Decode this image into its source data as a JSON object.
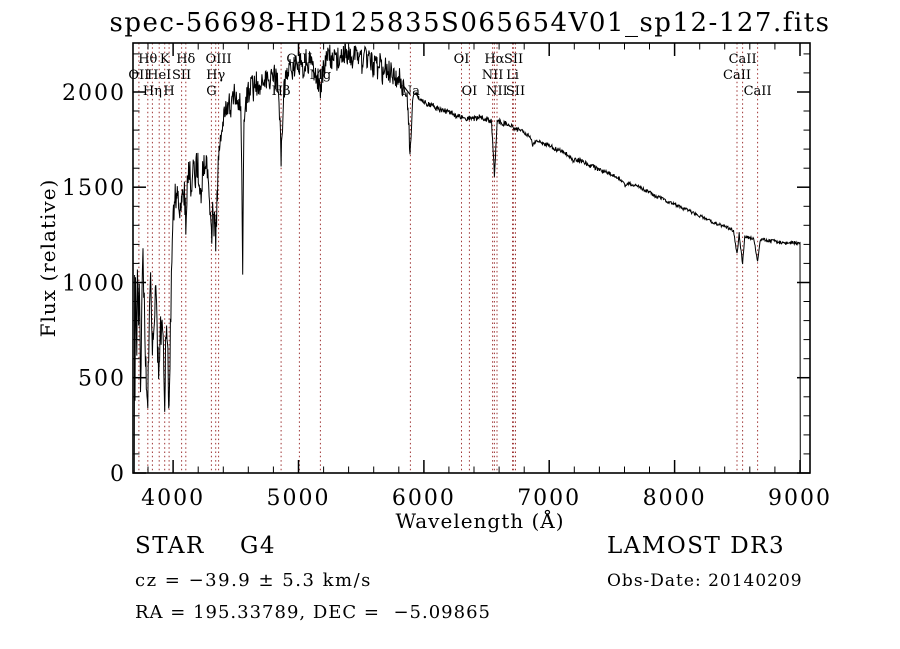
{
  "annotations": {
    "class_label": "STAR    G4",
    "cz": "cz = −39.9 ± 5.3 km/s",
    "radec": "RA = 195.33789, DEC =  −5.09865",
    "survey": "LAMOST DR3",
    "obs_date": "Obs-Date: 20140209"
  },
  "chart_data": {
    "type": "line",
    "title": "spec-56698-HD125835S065654V01_sp12-127.fits",
    "xlabel": "Wavelength (Å)",
    "ylabel": "Flux (relative)",
    "xlim": [
      3680,
      9080
    ],
    "ylim": [
      0,
      2257
    ],
    "x_ticks": [
      4000,
      5000,
      6000,
      7000,
      8000,
      9000
    ],
    "y_ticks": [
      0,
      500,
      1000,
      1500,
      2000
    ],
    "x_minor_step": 200,
    "y_minor_step": 100,
    "grid": false,
    "legend": "none",
    "line_color": "#000000",
    "marker_color": "#9e3434",
    "spectral_lines": [
      {
        "label": "OII",
        "wavelength": 3727,
        "row": 2
      },
      {
        "label": "Hθ",
        "wavelength": 3798,
        "row": 1
      },
      {
        "label": "Hη",
        "wavelength": 3835,
        "row": 3
      },
      {
        "label": "HeI",
        "wavelength": 3889,
        "row": 2
      },
      {
        "label": "K",
        "wavelength": 3933,
        "row": 1
      },
      {
        "label": "H",
        "wavelength": 3968,
        "row": 3
      },
      {
        "label": "SII",
        "wavelength": 4068,
        "row": 2
      },
      {
        "label": "Hδ",
        "wavelength": 4101,
        "row": 1
      },
      {
        "label": "G",
        "wavelength": 4305,
        "row": 3
      },
      {
        "label": "Hγ",
        "wavelength": 4340,
        "row": 2
      },
      {
        "label": "OIII",
        "wavelength": 4363,
        "row": 1
      },
      {
        "label": "Hβ",
        "wavelength": 4861,
        "row": 3
      },
      {
        "label": "OIII",
        "wavelength": 5007,
        "row": 1
      },
      {
        "label": "Mg",
        "wavelength": 5175,
        "row": 2
      },
      {
        "label": "Na",
        "wavelength": 5893,
        "row": 3
      },
      {
        "label": "OI",
        "wavelength": 6300,
        "row": 1
      },
      {
        "label": "OI",
        "wavelength": 6363,
        "row": 3
      },
      {
        "label": "NII",
        "wavelength": 6548,
        "row": 2
      },
      {
        "label": "Hα",
        "wavelength": 6563,
        "row": 1
      },
      {
        "label": "NII",
        "wavelength": 6583,
        "row": 3
      },
      {
        "label": "Li",
        "wavelength": 6707,
        "row": 2
      },
      {
        "label": "SII",
        "wavelength": 6716,
        "row": 1
      },
      {
        "label": "SII",
        "wavelength": 6731,
        "row": 3
      },
      {
        "label": "CaII",
        "wavelength": 8498,
        "row": 2
      },
      {
        "label": "CaII",
        "wavelength": 8542,
        "row": 1
      },
      {
        "label": "CaII",
        "wavelength": 8662,
        "row": 3
      }
    ],
    "noise_profile": [
      [
        3690,
        3990,
        120
      ],
      [
        3990,
        4380,
        85
      ],
      [
        4380,
        5900,
        65
      ],
      [
        5900,
        6700,
        15
      ],
      [
        6700,
        7600,
        12
      ],
      [
        7600,
        9010,
        9
      ]
    ],
    "series": [
      {
        "name": "flux",
        "points": [
          [
            3690,
            0
          ],
          [
            3693,
            950
          ],
          [
            3696,
            350
          ],
          [
            3700,
            1050
          ],
          [
            3705,
            800
          ],
          [
            3710,
            650
          ],
          [
            3715,
            1000
          ],
          [
            3720,
            1060
          ],
          [
            3725,
            850
          ],
          [
            3730,
            1000
          ],
          [
            3735,
            700
          ],
          [
            3740,
            480
          ],
          [
            3745,
            650
          ],
          [
            3750,
            850
          ],
          [
            3755,
            1050
          ],
          [
            3760,
            1120
          ],
          [
            3765,
            980
          ],
          [
            3770,
            900
          ],
          [
            3775,
            750
          ],
          [
            3780,
            600
          ],
          [
            3786,
            420
          ],
          [
            3792,
            320
          ],
          [
            3798,
            400
          ],
          [
            3805,
            650
          ],
          [
            3812,
            850
          ],
          [
            3820,
            950
          ],
          [
            3828,
            780
          ],
          [
            3835,
            600
          ],
          [
            3842,
            700
          ],
          [
            3850,
            880
          ],
          [
            3858,
            930
          ],
          [
            3865,
            850
          ],
          [
            3872,
            700
          ],
          [
            3880,
            600
          ],
          [
            3889,
            520
          ],
          [
            3896,
            650
          ],
          [
            3904,
            780
          ],
          [
            3912,
            850
          ],
          [
            3920,
            650
          ],
          [
            3926,
            480
          ],
          [
            3933,
            330
          ],
          [
            3940,
            600
          ],
          [
            3948,
            820
          ],
          [
            3955,
            700
          ],
          [
            3962,
            480
          ],
          [
            3968,
            340
          ],
          [
            3975,
            600
          ],
          [
            3982,
            900
          ],
          [
            3990,
            1150
          ],
          [
            4000,
            1320
          ],
          [
            4010,
            1420
          ],
          [
            4020,
            1480
          ],
          [
            4030,
            1450
          ],
          [
            4040,
            1420
          ],
          [
            4050,
            1350
          ],
          [
            4060,
            1420
          ],
          [
            4070,
            1480
          ],
          [
            4080,
            1500
          ],
          [
            4090,
            1450
          ],
          [
            4101,
            1320
          ],
          [
            4110,
            1480
          ],
          [
            4120,
            1550
          ],
          [
            4130,
            1580
          ],
          [
            4145,
            1520
          ],
          [
            4160,
            1600
          ],
          [
            4175,
            1560
          ],
          [
            4190,
            1620
          ],
          [
            4205,
            1580
          ],
          [
            4220,
            1500
          ],
          [
            4227,
            1450
          ],
          [
            4235,
            1580
          ],
          [
            4250,
            1650
          ],
          [
            4265,
            1600
          ],
          [
            4280,
            1550
          ],
          [
            4290,
            1480
          ],
          [
            4305,
            1230
          ],
          [
            4315,
            1350
          ],
          [
            4330,
            1300
          ],
          [
            4340,
            1200
          ],
          [
            4350,
            1450
          ],
          [
            4360,
            1600
          ],
          [
            4370,
            1700
          ],
          [
            4385,
            1780
          ],
          [
            4400,
            1850
          ],
          [
            4420,
            1900
          ],
          [
            4440,
            1950
          ],
          [
            4460,
            1920
          ],
          [
            4480,
            1990
          ],
          [
            4500,
            1960
          ],
          [
            4520,
            1900
          ],
          [
            4540,
            1960
          ],
          [
            4555,
            1080
          ],
          [
            4565,
            1850
          ],
          [
            4580,
            1950
          ],
          [
            4600,
            2000
          ],
          [
            4620,
            2050
          ],
          [
            4640,
            2000
          ],
          [
            4660,
            2060
          ],
          [
            4680,
            2010
          ],
          [
            4700,
            2060
          ],
          [
            4720,
            2100
          ],
          [
            4740,
            2060
          ],
          [
            4760,
            2100
          ],
          [
            4780,
            2060
          ],
          [
            4800,
            2110
          ],
          [
            4820,
            2070
          ],
          [
            4840,
            2020
          ],
          [
            4861,
            1660
          ],
          [
            4880,
            1980
          ],
          [
            4900,
            2060
          ],
          [
            4920,
            2110
          ],
          [
            4940,
            2150
          ],
          [
            4960,
            2110
          ],
          [
            4980,
            2150
          ],
          [
            5000,
            2120
          ],
          [
            5020,
            2160
          ],
          [
            5040,
            2120
          ],
          [
            5060,
            2160
          ],
          [
            5080,
            2130
          ],
          [
            5100,
            2170
          ],
          [
            5120,
            2130
          ],
          [
            5140,
            2100
          ],
          [
            5160,
            2060
          ],
          [
            5175,
            1990
          ],
          [
            5190,
            2080
          ],
          [
            5210,
            2140
          ],
          [
            5230,
            2170
          ],
          [
            5250,
            2190
          ],
          [
            5270,
            2150
          ],
          [
            5290,
            2200
          ],
          [
            5310,
            2170
          ],
          [
            5330,
            2210
          ],
          [
            5350,
            2180
          ],
          [
            5370,
            2210
          ],
          [
            5390,
            2170
          ],
          [
            5410,
            2200
          ],
          [
            5430,
            2160
          ],
          [
            5450,
            2190
          ],
          [
            5470,
            2150
          ],
          [
            5490,
            2180
          ],
          [
            5510,
            2150
          ],
          [
            5530,
            2180
          ],
          [
            5550,
            2140
          ],
          [
            5570,
            2170
          ],
          [
            5590,
            2130
          ],
          [
            5610,
            2150
          ],
          [
            5630,
            2110
          ],
          [
            5650,
            2140
          ],
          [
            5670,
            2100
          ],
          [
            5690,
            2130
          ],
          [
            5710,
            2090
          ],
          [
            5730,
            2110
          ],
          [
            5750,
            2070
          ],
          [
            5770,
            2090
          ],
          [
            5790,
            2050
          ],
          [
            5810,
            2070
          ],
          [
            5830,
            2030
          ],
          [
            5850,
            2010
          ],
          [
            5870,
            1950
          ],
          [
            5893,
            1660
          ],
          [
            5910,
            1950
          ],
          [
            5930,
            2000
          ],
          [
            5950,
            1980
          ],
          [
            5970,
            1960
          ],
          [
            6000,
            1950
          ],
          [
            6030,
            1940
          ],
          [
            6060,
            1930
          ],
          [
            6090,
            1920
          ],
          [
            6120,
            1910
          ],
          [
            6150,
            1900
          ],
          [
            6180,
            1900
          ],
          [
            6210,
            1890
          ],
          [
            6240,
            1880
          ],
          [
            6270,
            1875
          ],
          [
            6300,
            1870
          ],
          [
            6330,
            1865
          ],
          [
            6360,
            1860
          ],
          [
            6390,
            1860
          ],
          [
            6420,
            1865
          ],
          [
            6450,
            1870
          ],
          [
            6480,
            1860
          ],
          [
            6510,
            1855
          ],
          [
            6540,
            1845
          ],
          [
            6563,
            1560
          ],
          [
            6585,
            1840
          ],
          [
            6610,
            1845
          ],
          [
            6640,
            1835
          ],
          [
            6670,
            1830
          ],
          [
            6700,
            1820
          ],
          [
            6730,
            1805
          ],
          [
            6760,
            1800
          ],
          [
            6790,
            1790
          ],
          [
            6820,
            1780
          ],
          [
            6850,
            1765
          ],
          [
            6867,
            1720
          ],
          [
            6890,
            1745
          ],
          [
            6920,
            1740
          ],
          [
            6950,
            1730
          ],
          [
            6980,
            1725
          ],
          [
            7010,
            1715
          ],
          [
            7040,
            1705
          ],
          [
            7070,
            1695
          ],
          [
            7100,
            1690
          ],
          [
            7130,
            1680
          ],
          [
            7160,
            1660
          ],
          [
            7190,
            1640
          ],
          [
            7220,
            1645
          ],
          [
            7250,
            1640
          ],
          [
            7280,
            1630
          ],
          [
            7310,
            1620
          ],
          [
            7340,
            1610
          ],
          [
            7370,
            1600
          ],
          [
            7400,
            1595
          ],
          [
            7430,
            1585
          ],
          [
            7460,
            1580
          ],
          [
            7490,
            1565
          ],
          [
            7520,
            1560
          ],
          [
            7550,
            1550
          ],
          [
            7580,
            1535
          ],
          [
            7605,
            1505
          ],
          [
            7630,
            1520
          ],
          [
            7660,
            1515
          ],
          [
            7690,
            1510
          ],
          [
            7720,
            1500
          ],
          [
            7750,
            1490
          ],
          [
            7780,
            1480
          ],
          [
            7810,
            1470
          ],
          [
            7840,
            1455
          ],
          [
            7870,
            1450
          ],
          [
            7900,
            1440
          ],
          [
            7930,
            1430
          ],
          [
            7960,
            1420
          ],
          [
            7990,
            1415
          ],
          [
            8020,
            1405
          ],
          [
            8050,
            1395
          ],
          [
            8080,
            1385
          ],
          [
            8110,
            1378
          ],
          [
            8140,
            1368
          ],
          [
            8170,
            1358
          ],
          [
            8200,
            1350
          ],
          [
            8230,
            1340
          ],
          [
            8260,
            1332
          ],
          [
            8290,
            1322
          ],
          [
            8320,
            1315
          ],
          [
            8350,
            1305
          ],
          [
            8380,
            1298
          ],
          [
            8410,
            1290
          ],
          [
            8440,
            1282
          ],
          [
            8470,
            1272
          ],
          [
            8498,
            1150
          ],
          [
            8515,
            1255
          ],
          [
            8542,
            1095
          ],
          [
            8560,
            1245
          ],
          [
            8580,
            1240
          ],
          [
            8605,
            1232
          ],
          [
            8630,
            1228
          ],
          [
            8662,
            1115
          ],
          [
            8685,
            1225
          ],
          [
            8710,
            1228
          ],
          [
            8740,
            1222
          ],
          [
            8770,
            1218
          ],
          [
            8800,
            1215
          ],
          [
            8830,
            1210
          ],
          [
            8860,
            1208
          ],
          [
            8890,
            1205
          ],
          [
            8920,
            1208
          ],
          [
            8950,
            1210
          ],
          [
            8980,
            1205
          ],
          [
            9000,
            1205
          ],
          [
            9003,
            0
          ]
        ]
      }
    ]
  }
}
